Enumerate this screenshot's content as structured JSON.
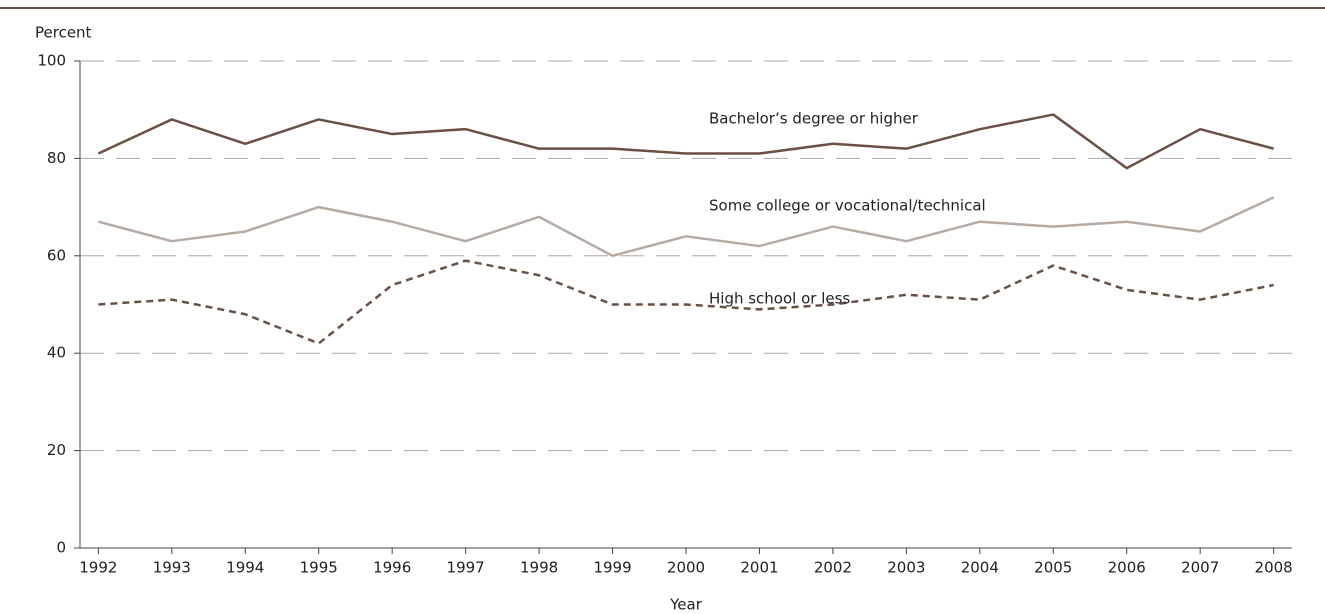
{
  "chart_data": {
    "type": "line",
    "y_label": "Percent",
    "x_label": "Year",
    "x": [
      1992,
      1993,
      1994,
      1995,
      1996,
      1997,
      1998,
      1999,
      2000,
      2001,
      2002,
      2003,
      2004,
      2005,
      2006,
      2007,
      2008
    ],
    "xlim": [
      1991.75,
      2008.25
    ],
    "xticks": [
      1992,
      1993,
      1994,
      1995,
      1996,
      1997,
      1998,
      1999,
      2000,
      2001,
      2002,
      2003,
      2004,
      2005,
      2006,
      2007,
      2008
    ],
    "ylim": [
      0,
      100
    ],
    "yticks": [
      0,
      20,
      40,
      60,
      80,
      100
    ],
    "grid": true,
    "series": [
      {
        "name": "Bachelor’s degree or higher",
        "color": "#6b5046",
        "dashed": false,
        "values": [
          81,
          88,
          83,
          88,
          85,
          86,
          82,
          82,
          81,
          81,
          83,
          82,
          86,
          89,
          78,
          86,
          82
        ]
      },
      {
        "name": "Some college or vocational/technical",
        "color": "#b7aaa4",
        "dashed": false,
        "values": [
          67,
          63,
          65,
          70,
          67,
          63,
          68,
          60,
          64,
          62,
          66,
          63,
          67,
          66,
          67,
          65,
          72
        ]
      },
      {
        "name": "High school or less",
        "color": "#6b5046",
        "dashed": true,
        "values": [
          50,
          51,
          48,
          42,
          54,
          59,
          56,
          50,
          50,
          49,
          50,
          52,
          51,
          58,
          53,
          51,
          54
        ]
      }
    ]
  }
}
